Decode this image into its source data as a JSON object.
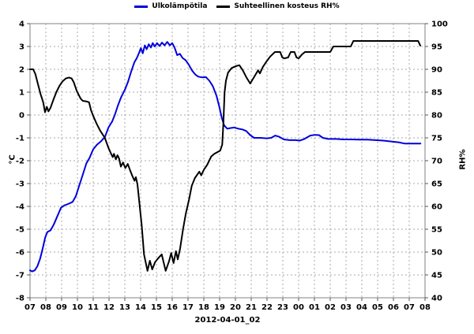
{
  "chart_data": {
    "type": "line",
    "title": "",
    "xlabel": "2012-04-01_02",
    "ylabel_left": "°C",
    "ylabel_right": "RH%",
    "grid": true,
    "legend_position": "top-center",
    "x_axis": {
      "total_minutes": 1500,
      "tick_labels": [
        "07",
        "08",
        "09",
        "10",
        "11",
        "12",
        "13",
        "14",
        "15",
        "16",
        "17",
        "18",
        "19",
        "20",
        "21",
        "22",
        "23",
        "00",
        "01",
        "02",
        "03",
        "04",
        "05",
        "06",
        "07",
        "08"
      ]
    },
    "y_axis_left": {
      "range": [
        -8,
        4
      ],
      "tick_step": 1,
      "tick_labels": [
        "4",
        "3",
        "2",
        "1",
        "0",
        "-1",
        "-2",
        "-3",
        "-4",
        "-5",
        "-6",
        "-7",
        "-8"
      ]
    },
    "y_axis_right": {
      "range": [
        40,
        100
      ],
      "tick_step": 5,
      "tick_labels": [
        "100",
        "95",
        "90",
        "85",
        "80",
        "75",
        "70",
        "65",
        "60",
        "55",
        "50",
        "45",
        "40"
      ]
    },
    "series": [
      {
        "name": "Ulkolämpötila",
        "axis": "left",
        "color": "#0000dd",
        "points_min_val": [
          [
            0,
            -6.8
          ],
          [
            8,
            -6.85
          ],
          [
            18,
            -6.8
          ],
          [
            28,
            -6.62
          ],
          [
            38,
            -6.3
          ],
          [
            48,
            -5.85
          ],
          [
            58,
            -5.35
          ],
          [
            66,
            -5.12
          ],
          [
            78,
            -5.05
          ],
          [
            90,
            -4.8
          ],
          [
            104,
            -4.42
          ],
          [
            118,
            -4.05
          ],
          [
            132,
            -3.95
          ],
          [
            148,
            -3.88
          ],
          [
            162,
            -3.8
          ],
          [
            174,
            -3.55
          ],
          [
            186,
            -3.12
          ],
          [
            200,
            -2.62
          ],
          [
            214,
            -2.12
          ],
          [
            226,
            -1.88
          ],
          [
            240,
            -1.5
          ],
          [
            254,
            -1.3
          ],
          [
            268,
            -1.17
          ],
          [
            284,
            -0.97
          ],
          [
            298,
            -0.55
          ],
          [
            312,
            -0.28
          ],
          [
            322,
            0.0
          ],
          [
            334,
            0.42
          ],
          [
            346,
            0.78
          ],
          [
            360,
            1.1
          ],
          [
            372,
            1.45
          ],
          [
            384,
            1.9
          ],
          [
            396,
            2.3
          ],
          [
            406,
            2.5
          ],
          [
            414,
            2.72
          ],
          [
            421,
            2.93
          ],
          [
            428,
            2.7
          ],
          [
            436,
            3.05
          ],
          [
            443,
            2.88
          ],
          [
            451,
            3.1
          ],
          [
            459,
            2.95
          ],
          [
            466,
            3.15
          ],
          [
            474,
            3.0
          ],
          [
            482,
            3.15
          ],
          [
            492,
            3.02
          ],
          [
            501,
            3.17
          ],
          [
            511,
            3.05
          ],
          [
            521,
            3.2
          ],
          [
            531,
            3.05
          ],
          [
            540,
            3.15
          ],
          [
            549,
            2.95
          ],
          [
            559,
            2.62
          ],
          [
            569,
            2.68
          ],
          [
            579,
            2.5
          ],
          [
            591,
            2.4
          ],
          [
            603,
            2.2
          ],
          [
            615,
            1.95
          ],
          [
            627,
            1.78
          ],
          [
            639,
            1.68
          ],
          [
            654,
            1.65
          ],
          [
            668,
            1.66
          ],
          [
            681,
            1.5
          ],
          [
            694,
            1.27
          ],
          [
            708,
            0.85
          ],
          [
            719,
            0.35
          ],
          [
            728,
            -0.12
          ],
          [
            737,
            -0.45
          ],
          [
            749,
            -0.6
          ],
          [
            762,
            -0.57
          ],
          [
            776,
            -0.55
          ],
          [
            791,
            -0.6
          ],
          [
            806,
            -0.63
          ],
          [
            821,
            -0.7
          ],
          [
            836,
            -0.88
          ],
          [
            851,
            -1.0
          ],
          [
            876,
            -1.0
          ],
          [
            898,
            -1.02
          ],
          [
            916,
            -1.0
          ],
          [
            931,
            -0.9
          ],
          [
            946,
            -0.95
          ],
          [
            964,
            -1.07
          ],
          [
            986,
            -1.1
          ],
          [
            1008,
            -1.1
          ],
          [
            1024,
            -1.12
          ],
          [
            1042,
            -1.05
          ],
          [
            1064,
            -0.9
          ],
          [
            1081,
            -0.87
          ],
          [
            1097,
            -0.88
          ],
          [
            1112,
            -1.0
          ],
          [
            1132,
            -1.05
          ],
          [
            1162,
            -1.05
          ],
          [
            1192,
            -1.07
          ],
          [
            1222,
            -1.07
          ],
          [
            1252,
            -1.08
          ],
          [
            1282,
            -1.08
          ],
          [
            1312,
            -1.1
          ],
          [
            1342,
            -1.12
          ],
          [
            1372,
            -1.16
          ],
          [
            1402,
            -1.2
          ],
          [
            1424,
            -1.25
          ],
          [
            1455,
            -1.25
          ],
          [
            1483,
            -1.25
          ]
        ]
      },
      {
        "name": "Suhteellinen kosteus RH%",
        "axis": "right",
        "color": "#000000",
        "points_min_val": [
          [
            0,
            90
          ],
          [
            12,
            90
          ],
          [
            20,
            89
          ],
          [
            30,
            86.8
          ],
          [
            40,
            84.6
          ],
          [
            50,
            82.8
          ],
          [
            57,
            80.6
          ],
          [
            64,
            81.8
          ],
          [
            70,
            80.8
          ],
          [
            78,
            81.6
          ],
          [
            88,
            83.2
          ],
          [
            100,
            85.0
          ],
          [
            112,
            86.4
          ],
          [
            124,
            87.4
          ],
          [
            136,
            88.0
          ],
          [
            148,
            88.2
          ],
          [
            158,
            88.0
          ],
          [
            166,
            87.2
          ],
          [
            178,
            85.2
          ],
          [
            192,
            83.6
          ],
          [
            200,
            83.1
          ],
          [
            212,
            83.0
          ],
          [
            224,
            82.8
          ],
          [
            232,
            81.0
          ],
          [
            240,
            79.8
          ],
          [
            252,
            78.2
          ],
          [
            266,
            76.6
          ],
          [
            284,
            75.0
          ],
          [
            298,
            72.8
          ],
          [
            308,
            71.5
          ],
          [
            314,
            70.8
          ],
          [
            319,
            71.5
          ],
          [
            326,
            70.3
          ],
          [
            332,
            71.2
          ],
          [
            338,
            70.5
          ],
          [
            345,
            68.7
          ],
          [
            353,
            69.6
          ],
          [
            362,
            68.4
          ],
          [
            371,
            69.3
          ],
          [
            380,
            67.9
          ],
          [
            389,
            66.6
          ],
          [
            397,
            65.6
          ],
          [
            402,
            66.4
          ],
          [
            408,
            64.8
          ],
          [
            414,
            61.5
          ],
          [
            424,
            56.0
          ],
          [
            433,
            49.5
          ],
          [
            446,
            45.9
          ],
          [
            455,
            48.1
          ],
          [
            464,
            46.2
          ],
          [
            475,
            47.8
          ],
          [
            486,
            48.6
          ],
          [
            500,
            49.5
          ],
          [
            515,
            45.9
          ],
          [
            528,
            48.0
          ],
          [
            536,
            49.8
          ],
          [
            545,
            47.6
          ],
          [
            554,
            50.2
          ],
          [
            561,
            48.4
          ],
          [
            570,
            50.8
          ],
          [
            581,
            55.0
          ],
          [
            592,
            58.5
          ],
          [
            604,
            61.5
          ],
          [
            614,
            64.5
          ],
          [
            626,
            66.2
          ],
          [
            643,
            67.6
          ],
          [
            650,
            66.8
          ],
          [
            660,
            68.0
          ],
          [
            673,
            69.1
          ],
          [
            688,
            70.9
          ],
          [
            700,
            71.5
          ],
          [
            722,
            72.2
          ],
          [
            730,
            73.5
          ],
          [
            734,
            78.0
          ],
          [
            739,
            85.0
          ],
          [
            744,
            87.5
          ],
          [
            752,
            89.3
          ],
          [
            766,
            90.3
          ],
          [
            782,
            90.7
          ],
          [
            795,
            90.9
          ],
          [
            808,
            89.8
          ],
          [
            822,
            88.2
          ],
          [
            836,
            86.9
          ],
          [
            850,
            88.2
          ],
          [
            866,
            89.8
          ],
          [
            873,
            89.1
          ],
          [
            884,
            90.5
          ],
          [
            898,
            91.7
          ],
          [
            912,
            92.8
          ],
          [
            930,
            93.8
          ],
          [
            950,
            93.8
          ],
          [
            958,
            92.6
          ],
          [
            966,
            92.4
          ],
          [
            980,
            92.6
          ],
          [
            990,
            93.8
          ],
          [
            1004,
            93.8
          ],
          [
            1012,
            92.6
          ],
          [
            1020,
            92.4
          ],
          [
            1032,
            93.2
          ],
          [
            1044,
            93.8
          ],
          [
            1090,
            93.8
          ],
          [
            1140,
            93.8
          ],
          [
            1152,
            95.0
          ],
          [
            1218,
            95.0
          ],
          [
            1228,
            96.2
          ],
          [
            1300,
            96.2
          ],
          [
            1380,
            96.2
          ],
          [
            1450,
            96.2
          ],
          [
            1474,
            96.2
          ],
          [
            1482,
            95.2
          ]
        ]
      }
    ],
    "colors": {
      "grid": "#a8a8a8",
      "axis_box": "#808080",
      "tick": "#555555",
      "temperature_line": "#0000dd",
      "humidity_line": "#000000",
      "background": "#ffffff",
      "text": "#000000"
    }
  }
}
